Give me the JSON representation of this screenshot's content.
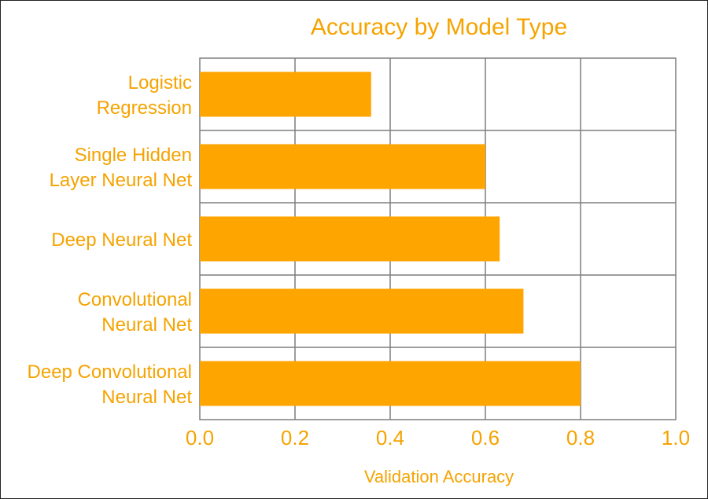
{
  "chart_data": {
    "type": "bar",
    "orientation": "horizontal",
    "title": "Accuracy by Model Type",
    "xlabel": "Validation Accuracy",
    "ylabel": "",
    "xlim": [
      0,
      1.0
    ],
    "xticks": [
      0,
      0.2,
      0.4,
      0.6,
      0.8,
      1.0
    ],
    "xtick_labels": [
      "0.0",
      "0.2",
      "0.4",
      "0.6",
      "0.8",
      "1.0"
    ],
    "grid": true,
    "categories": [
      [
        "Logistic",
        "Regression"
      ],
      [
        "Single Hidden",
        "Layer Neural Net"
      ],
      [
        "Deep Neural Net"
      ],
      [
        "Convolutional",
        "Neural Net"
      ],
      [
        "Deep Convolutional",
        "Neural Net"
      ]
    ],
    "values": [
      0.36,
      0.6,
      0.63,
      0.68,
      0.8
    ],
    "colors": {
      "bar": "#ffa500",
      "text": "#f5a300",
      "grid": "#7f7f7f"
    }
  }
}
